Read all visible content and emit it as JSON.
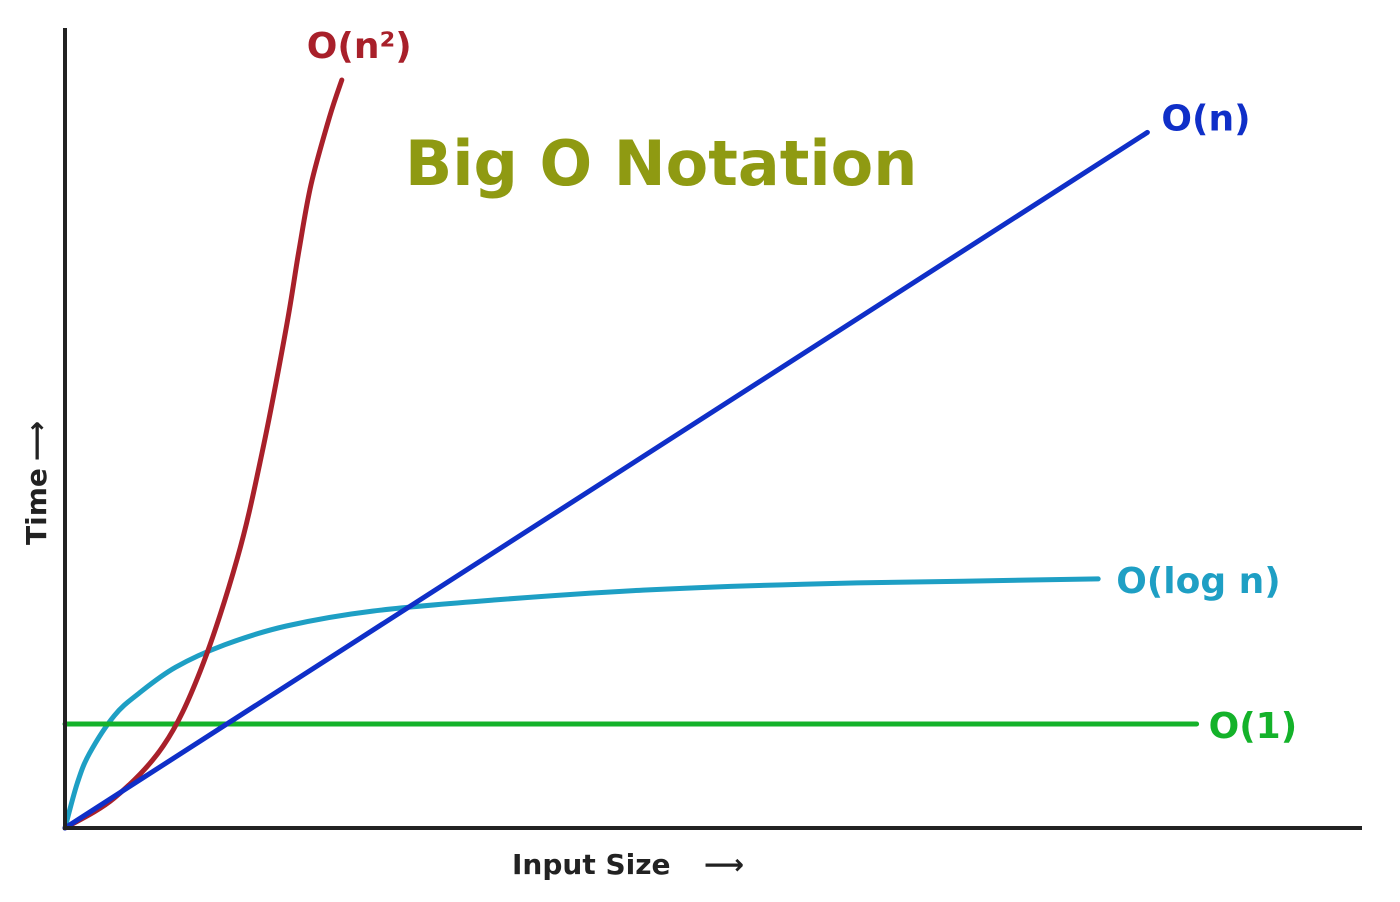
{
  "chart_data": {
    "type": "line",
    "title": "Big O Notation",
    "xlabel": "Input Size",
    "ylabel": "Time",
    "axis_arrow": "⟶",
    "grid": false,
    "title_color": "#8f9a12",
    "xlim": [
      0,
      1
    ],
    "ylim": [
      0,
      1
    ],
    "series": [
      {
        "name": "O(n²)",
        "id": "n2",
        "color": "#a8202a",
        "x": [
          0,
          0.04,
          0.08,
          0.11,
          0.14,
          0.16,
          0.18,
          0.19,
          0.2,
          0.215,
          0.225
        ],
        "y": [
          0,
          0.04,
          0.11,
          0.21,
          0.36,
          0.5,
          0.67,
          0.77,
          0.86,
          0.95,
          1.0
        ]
      },
      {
        "name": "O(n)",
        "id": "n",
        "color": "#0f2fc8",
        "x": [
          0,
          0.88
        ],
        "y": [
          0,
          0.93
        ]
      },
      {
        "name": "O(log n)",
        "id": "logn",
        "color": "#1e9fc4",
        "x": [
          0,
          0.01,
          0.02,
          0.04,
          0.06,
          0.09,
          0.13,
          0.18,
          0.25,
          0.35,
          0.47,
          0.6,
          0.73,
          0.84
        ],
        "y": [
          0,
          0.06,
          0.1,
          0.15,
          0.18,
          0.215,
          0.245,
          0.27,
          0.29,
          0.305,
          0.318,
          0.326,
          0.33,
          0.333
        ]
      },
      {
        "name": "O(1)",
        "id": "const",
        "color": "#14b22a",
        "x": [
          0,
          0.92
        ],
        "y": [
          0.139,
          0.139
        ]
      }
    ]
  }
}
